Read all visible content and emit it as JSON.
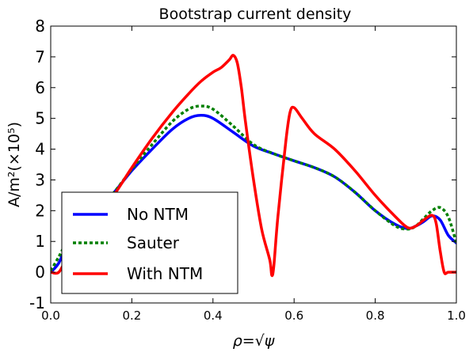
{
  "chart_data": {
    "type": "line",
    "title": "Bootstrap current density",
    "xlabel": "ρ=√ψ",
    "ylabel": "A/m²(×10⁵)",
    "xlim": [
      0.0,
      1.0
    ],
    "ylim": [
      -1,
      8
    ],
    "xticks": [
      "0.0",
      "0.2",
      "0.4",
      "0.6",
      "0.8",
      "1.0"
    ],
    "yticks": [
      "-1",
      "0",
      "1",
      "2",
      "3",
      "4",
      "5",
      "6",
      "7",
      "8"
    ],
    "grid": false,
    "legend_position": "lower-left",
    "series": [
      {
        "name": "No NTM",
        "color": "#0000ff",
        "style": "solid",
        "x": [
          0.0,
          0.02,
          0.04,
          0.06,
          0.08,
          0.1,
          0.12,
          0.15,
          0.2,
          0.25,
          0.3,
          0.34,
          0.37,
          0.4,
          0.45,
          0.5,
          0.55,
          0.6,
          0.65,
          0.7,
          0.75,
          0.8,
          0.85,
          0.88,
          0.9,
          0.92,
          0.94,
          0.96,
          0.98,
          1.0
        ],
        "y": [
          0.0,
          0.3,
          0.9,
          1.3,
          1.6,
          1.9,
          2.2,
          2.5,
          3.3,
          4.0,
          4.65,
          5.0,
          5.1,
          5.0,
          4.55,
          4.1,
          3.85,
          3.62,
          3.4,
          3.1,
          2.6,
          2.0,
          1.55,
          1.42,
          1.5,
          1.65,
          1.83,
          1.7,
          1.2,
          0.95
        ]
      },
      {
        "name": "Sauter",
        "color": "#008000",
        "style": "dotted",
        "x": [
          0.0,
          0.02,
          0.04,
          0.06,
          0.08,
          0.1,
          0.12,
          0.15,
          0.2,
          0.25,
          0.3,
          0.34,
          0.37,
          0.4,
          0.45,
          0.5,
          0.55,
          0.6,
          0.65,
          0.7,
          0.75,
          0.8,
          0.85,
          0.88,
          0.9,
          0.92,
          0.94,
          0.96,
          0.98,
          1.0
        ],
        "y": [
          0.05,
          0.5,
          1.0,
          1.35,
          1.65,
          1.95,
          2.2,
          2.5,
          3.35,
          4.15,
          4.9,
          5.3,
          5.4,
          5.3,
          4.75,
          4.15,
          3.85,
          3.62,
          3.4,
          3.1,
          2.6,
          2.0,
          1.5,
          1.4,
          1.5,
          1.75,
          2.0,
          2.1,
          1.8,
          0.95
        ]
      },
      {
        "name": "With NTM",
        "color": "#ff0000",
        "style": "solid",
        "x": [
          0.0,
          0.02,
          0.04,
          0.06,
          0.08,
          0.1,
          0.12,
          0.15,
          0.2,
          0.25,
          0.3,
          0.34,
          0.37,
          0.4,
          0.42,
          0.44,
          0.45,
          0.46,
          0.47,
          0.48,
          0.5,
          0.52,
          0.54,
          0.545,
          0.55,
          0.56,
          0.58,
          0.59,
          0.6,
          0.62,
          0.65,
          0.7,
          0.75,
          0.8,
          0.85,
          0.88,
          0.9,
          0.92,
          0.94,
          0.95,
          0.96,
          0.97,
          0.98,
          1.0
        ],
        "y": [
          0.0,
          0.0,
          0.5,
          1.1,
          1.5,
          1.8,
          2.05,
          2.4,
          3.4,
          4.35,
          5.2,
          5.8,
          6.2,
          6.5,
          6.65,
          6.9,
          7.05,
          6.8,
          6.0,
          4.9,
          3.0,
          1.4,
          0.4,
          -0.1,
          0.2,
          1.8,
          4.3,
          5.2,
          5.35,
          5.0,
          4.5,
          4.0,
          3.3,
          2.5,
          1.8,
          1.45,
          1.5,
          1.7,
          1.85,
          1.6,
          0.7,
          0.0,
          0.0,
          0.0
        ]
      }
    ]
  }
}
